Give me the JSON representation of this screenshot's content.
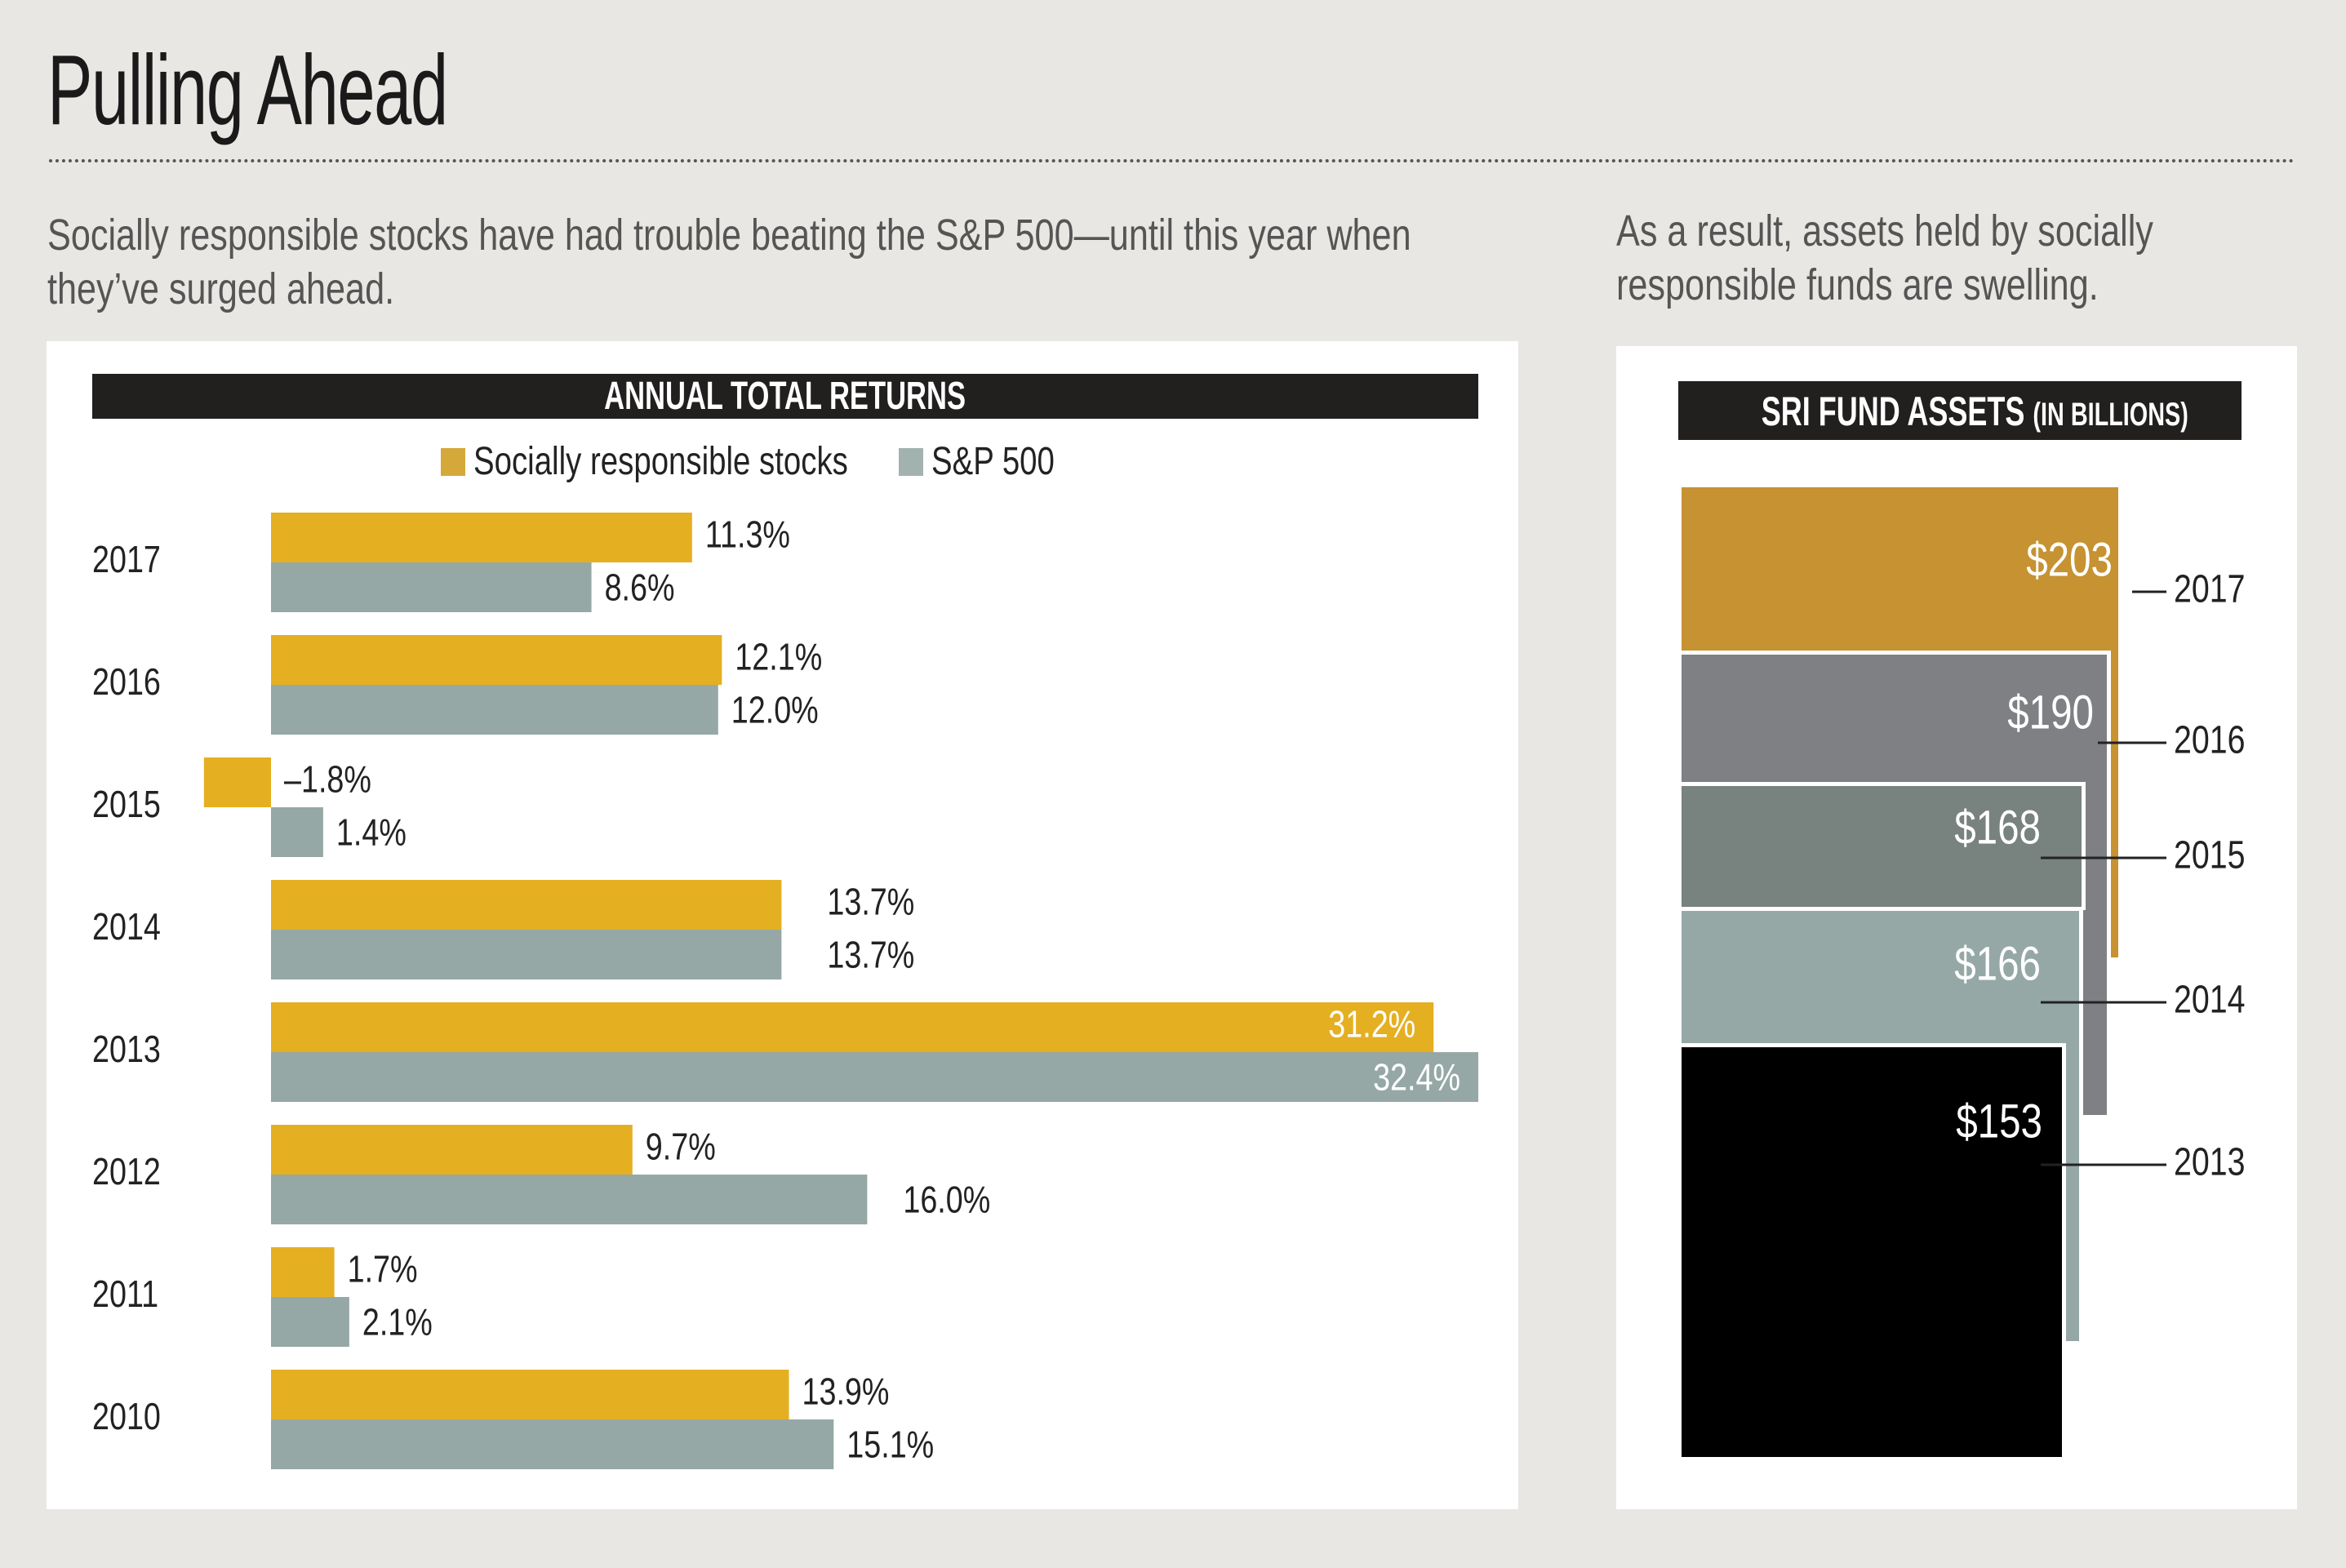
{
  "title": "Pulling Ahead",
  "subtitle_left": "Socially responsible stocks have had trouble beating the S&P 500—until this year when they’ve surged ahead.",
  "subtitle_left_lines": [
    "Socially responsible stocks have had trouble beating the S&P 500—until this year when",
    "they’ve surged ahead."
  ],
  "subtitle_right_lines": [
    "As a result, assets held by socially",
    "responsible funds are swelling."
  ],
  "colors": {
    "background": "#e8e7e3",
    "panel": "#ffffff",
    "header_bar": "#221f1f",
    "sri": "#e5af22",
    "sri_legend": "#d4a93a",
    "sp500": "#95a8a5",
    "asset_2017": "#c69232",
    "asset_2016": "#7f8083",
    "asset_2015": "#78827f",
    "asset_2014": "#95a8a5",
    "asset_2013": "#000000"
  },
  "chart_data": [
    {
      "type": "bar",
      "orientation": "horizontal",
      "title": "ANNUAL TOTAL RETURNS",
      "xlabel": "",
      "ylabel": "",
      "xlim": [
        -1.8,
        32.4
      ],
      "grid": false,
      "legend_position": "top-center",
      "categories": [
        "2017",
        "2016",
        "2015",
        "2014",
        "2013",
        "2012",
        "2011",
        "2010"
      ],
      "series": [
        {
          "name": "Socially responsible stocks",
          "color_key": "sri",
          "values": [
            11.3,
            12.1,
            -1.8,
            13.7,
            31.2,
            9.7,
            1.7,
            13.9
          ],
          "labels": [
            "11.3%",
            "12.1%",
            "–1.8%",
            "13.7%",
            "31.2%",
            "9.7%",
            "1.7%",
            "13.9%"
          ]
        },
        {
          "name": "S&P 500",
          "color_key": "sp500",
          "values": [
            8.6,
            12.0,
            1.4,
            13.7,
            32.4,
            16.0,
            2.1,
            15.1
          ],
          "labels": [
            "8.6%",
            "12.0%",
            "1.4%",
            "13.7%",
            "32.4%",
            "16.0%",
            "2.1%",
            "15.1%"
          ]
        }
      ]
    },
    {
      "type": "area",
      "subtype": "nested-squares",
      "title": "SRI FUND ASSETS",
      "title_suffix": "(IN BILLIONS)",
      "unit": "billions USD",
      "categories": [
        "2017",
        "2016",
        "2015",
        "2014",
        "2013"
      ],
      "values": [
        203,
        190,
        168,
        166,
        153
      ],
      "labels": [
        "$203",
        "$190",
        "$168",
        "$166",
        "$153"
      ],
      "color_keys": [
        "asset_2017",
        "asset_2016",
        "asset_2015",
        "asset_2014",
        "asset_2013"
      ]
    }
  ]
}
